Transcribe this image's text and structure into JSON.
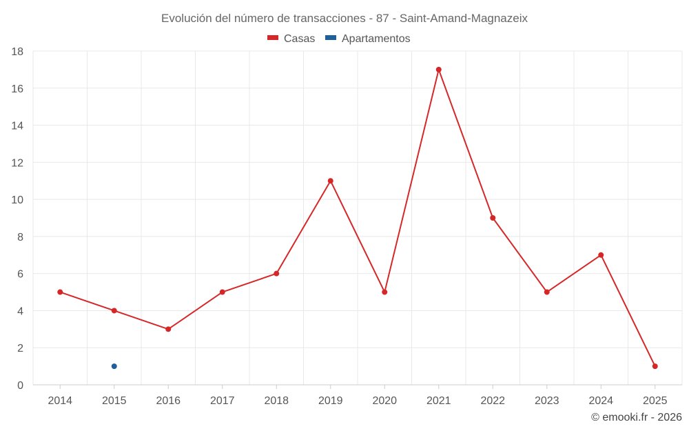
{
  "chart_data": {
    "type": "line",
    "title": "Evolución del número de transacciones - 87 - Saint-Amand-Magnazeix",
    "categories": [
      "2014",
      "2015",
      "2016",
      "2017",
      "2018",
      "2019",
      "2020",
      "2021",
      "2022",
      "2023",
      "2024",
      "2025"
    ],
    "series": [
      {
        "name": "Casas",
        "color": "#d62728",
        "values": [
          5,
          4,
          3,
          5,
          6,
          11,
          5,
          17,
          9,
          5,
          7,
          1
        ]
      },
      {
        "name": "Apartamentos",
        "color": "#1f5f9b",
        "values": [
          null,
          1,
          null,
          null,
          null,
          null,
          null,
          null,
          null,
          null,
          null,
          null
        ]
      }
    ],
    "ylim": [
      0,
      18
    ],
    "yticks": [
      0,
      2,
      4,
      6,
      8,
      10,
      12,
      14,
      16,
      18
    ],
    "xlabel": "",
    "ylabel": "",
    "grid": true,
    "legend_position": "top-center"
  },
  "footer": {
    "credit": "© emooki.fr - 2026"
  }
}
